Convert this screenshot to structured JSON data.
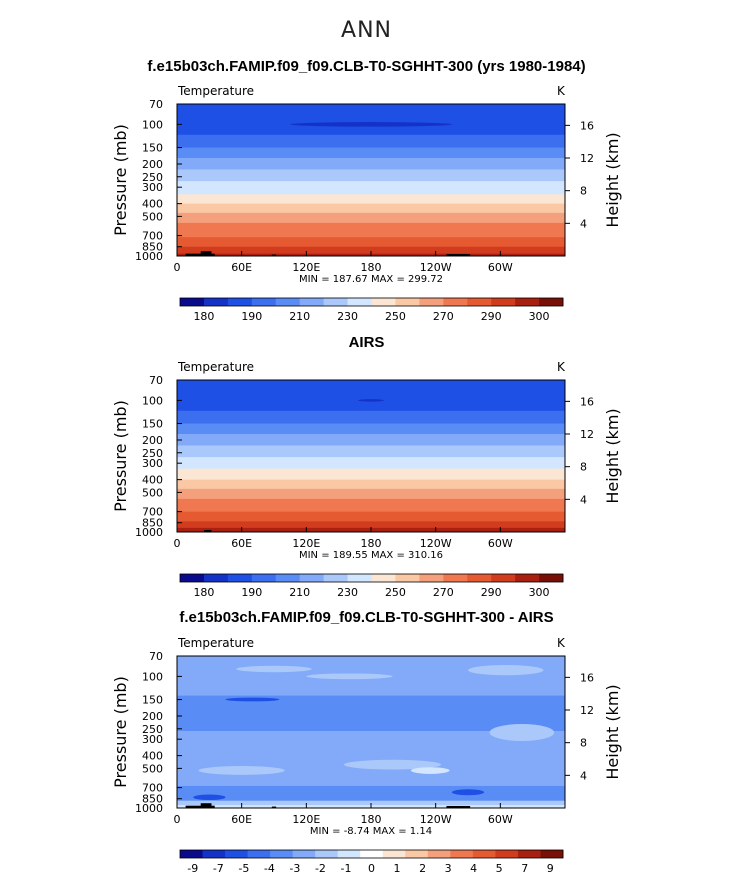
{
  "page": {
    "suptitle": "ANN",
    "panel_titles": [
      "f.e15b03ch.FAMIP.f09_f09.CLB-T0-SGHHT-300 (yrs 1980-1984)",
      "AIRS",
      "f.e15b03ch.FAMIP.f09_f09.CLB-T0-SGHHT-300 - AIRS"
    ]
  },
  "chart_data": [
    {
      "type": "heatmap",
      "title": "f.e15b03ch.FAMIP.f09_f09.CLB-T0-SGHHT-300 (yrs 1980-1984)",
      "variable": "Temperature",
      "units": "K",
      "ylabel": "Pressure (mb)",
      "ylabel_right": "Height (km)",
      "xticks": [
        "0",
        "60E",
        "120E",
        "180",
        "120W",
        "60W"
      ],
      "xtick_values": [
        0,
        60,
        120,
        180,
        240,
        300
      ],
      "xlim": [
        0,
        360
      ],
      "yticks": [
        "70",
        "100",
        "150",
        "200",
        "250",
        "300",
        "400",
        "500",
        "700",
        "850",
        "1000"
      ],
      "ytick_values": [
        70,
        100,
        150,
        200,
        250,
        300,
        400,
        500,
        700,
        850,
        1000
      ],
      "ylim": [
        70,
        1000
      ],
      "height_ticks": [
        "16",
        "12",
        "8",
        "4"
      ],
      "height_values": [
        16,
        12,
        8,
        4
      ],
      "stats": "MIN = 187.67  MAX = 299.72",
      "colorbar_labels": [
        "180",
        "190",
        "210",
        "230",
        "250",
        "270",
        "290",
        "300"
      ],
      "colorbar_colors": [
        "#0a0a8c",
        "#1432c8",
        "#1e50e6",
        "#3c6ef0",
        "#5a8cf5",
        "#82aaf8",
        "#aac8fa",
        "#d2e6ff",
        "#fae6d2",
        "#fac8a5",
        "#f5a07d",
        "#f07850",
        "#e65a32",
        "#d23c1e",
        "#aa2010",
        "#781008"
      ],
      "levels": [
        {
          "p": 70,
          "color": "#1e50e6"
        },
        {
          "p": 120,
          "color": "#3c6ef0"
        },
        {
          "p": 150,
          "color": "#5a8cf5"
        },
        {
          "p": 180,
          "color": "#82aaf8"
        },
        {
          "p": 220,
          "color": "#aac8fa"
        },
        {
          "p": 270,
          "color": "#d2e6ff"
        },
        {
          "p": 340,
          "color": "#fae6d2"
        },
        {
          "p": 400,
          "color": "#fac8a5"
        },
        {
          "p": 470,
          "color": "#f5a07d"
        },
        {
          "p": 560,
          "color": "#f07850"
        },
        {
          "p": 720,
          "color": "#e65a32"
        },
        {
          "p": 850,
          "color": "#d23c1e"
        },
        {
          "p": 960,
          "color": "#aa2010"
        }
      ],
      "features": [
        {
          "lon_center": 180,
          "lon_half": 75,
          "p": 100,
          "p_half": 4,
          "color": "#1432c8"
        }
      ],
      "topography": [
        {
          "lon": [
            8,
            35
          ],
          "p": 960
        },
        {
          "lon": [
            22,
            32
          ],
          "p": 920
        },
        {
          "lon": [
            88,
            92
          ],
          "p": 975
        },
        {
          "lon": [
            250,
            272
          ],
          "p": 965
        }
      ]
    },
    {
      "type": "heatmap",
      "title": "AIRS",
      "variable": "Temperature",
      "units": "K",
      "ylabel": "Pressure (mb)",
      "ylabel_right": "Height (km)",
      "xticks": [
        "0",
        "60E",
        "120E",
        "180",
        "120W",
        "60W"
      ],
      "xtick_values": [
        0,
        60,
        120,
        180,
        240,
        300
      ],
      "xlim": [
        0,
        360
      ],
      "yticks": [
        "70",
        "100",
        "150",
        "200",
        "250",
        "300",
        "400",
        "500",
        "700",
        "850",
        "1000"
      ],
      "ytick_values": [
        70,
        100,
        150,
        200,
        250,
        300,
        400,
        500,
        700,
        850,
        1000
      ],
      "ylim": [
        70,
        1000
      ],
      "height_ticks": [
        "16",
        "12",
        "8",
        "4"
      ],
      "height_values": [
        16,
        12,
        8,
        4
      ],
      "stats": "MIN = 189.55  MAX = 310.16",
      "colorbar_labels": [
        "180",
        "190",
        "210",
        "230",
        "250",
        "270",
        "290",
        "300"
      ],
      "colorbar_colors": [
        "#0a0a8c",
        "#1432c8",
        "#1e50e6",
        "#3c6ef0",
        "#5a8cf5",
        "#82aaf8",
        "#aac8fa",
        "#d2e6ff",
        "#fae6d2",
        "#fac8a5",
        "#f5a07d",
        "#f07850",
        "#e65a32",
        "#d23c1e",
        "#aa2010",
        "#781008"
      ],
      "levels": [
        {
          "p": 70,
          "color": "#1e50e6"
        },
        {
          "p": 120,
          "color": "#3c6ef0"
        },
        {
          "p": 150,
          "color": "#5a8cf5"
        },
        {
          "p": 180,
          "color": "#82aaf8"
        },
        {
          "p": 220,
          "color": "#aac8fa"
        },
        {
          "p": 270,
          "color": "#d2e6ff"
        },
        {
          "p": 330,
          "color": "#fae6d2"
        },
        {
          "p": 400,
          "color": "#fac8a5"
        },
        {
          "p": 470,
          "color": "#f5a07d"
        },
        {
          "p": 560,
          "color": "#f07850"
        },
        {
          "p": 700,
          "color": "#e65a32"
        },
        {
          "p": 830,
          "color": "#d23c1e"
        },
        {
          "p": 930,
          "color": "#aa2010"
        }
      ],
      "features": [
        {
          "lon_center": 180,
          "lon_half": 12,
          "p": 100,
          "p_half": 1.5,
          "color": "#1432c8"
        }
      ],
      "topography": [
        {
          "lon": [
            25,
            32
          ],
          "p": 965
        }
      ]
    },
    {
      "type": "heatmap",
      "title": "f.e15b03ch.FAMIP.f09_f09.CLB-T0-SGHHT-300 - AIRS",
      "variable": "Temperature",
      "units": "K",
      "ylabel": "Pressure (mb)",
      "ylabel_right": "Height (km)",
      "xticks": [
        "0",
        "60E",
        "120E",
        "180",
        "120W",
        "60W"
      ],
      "xtick_values": [
        0,
        60,
        120,
        180,
        240,
        300
      ],
      "xlim": [
        0,
        360
      ],
      "yticks": [
        "70",
        "100",
        "150",
        "200",
        "250",
        "300",
        "400",
        "500",
        "700",
        "850",
        "1000"
      ],
      "ytick_values": [
        70,
        100,
        150,
        200,
        250,
        300,
        400,
        500,
        700,
        850,
        1000
      ],
      "ylim": [
        70,
        1000
      ],
      "height_ticks": [
        "16",
        "12",
        "8",
        "4"
      ],
      "height_values": [
        16,
        12,
        8,
        4
      ],
      "stats": "MIN =  -8.74  MAX =   1.14",
      "colorbar_labels": [
        "-9",
        "-7",
        "-5",
        "-4",
        "-3",
        "-2",
        "-1",
        "0",
        "1",
        "2",
        "3",
        "4",
        "5",
        "7",
        "9"
      ],
      "colorbar_colors": [
        "#0a0a8c",
        "#1432c8",
        "#1e50e6",
        "#3c6ef0",
        "#5a8cf5",
        "#82aaf8",
        "#aac8fa",
        "#d2e6ff",
        "#ffffff",
        "#fae6d2",
        "#fac8a5",
        "#f5a07d",
        "#f07850",
        "#e65a32",
        "#d23c1e",
        "#aa2010",
        "#781008"
      ],
      "levels": [
        {
          "p": 70,
          "color": "#82aaf8"
        },
        {
          "p": 140,
          "color": "#5a8cf5"
        },
        {
          "p": 260,
          "color": "#82aaf8"
        },
        {
          "p": 680,
          "color": "#5a8cf5"
        },
        {
          "p": 880,
          "color": "#aac8fa"
        },
        {
          "p": 950,
          "color": "#d2e6ff"
        }
      ],
      "features": [
        {
          "lon_center": 90,
          "lon_half": 35,
          "p": 88,
          "p_half": 5,
          "color": "#aac8fa"
        },
        {
          "lon_center": 305,
          "lon_half": 35,
          "p": 90,
          "p_half": 8,
          "color": "#aac8fa"
        },
        {
          "lon_center": 160,
          "lon_half": 40,
          "p": 100,
          "p_half": 5,
          "color": "#aac8fa"
        },
        {
          "lon_center": 70,
          "lon_half": 25,
          "p": 150,
          "p_half": 5,
          "color": "#1e50e6"
        },
        {
          "lon_center": 60,
          "lon_half": 40,
          "p": 520,
          "p_half": 40,
          "color": "#aac8fa"
        },
        {
          "lon_center": 200,
          "lon_half": 45,
          "p": 470,
          "p_half": 40,
          "color": "#aac8fa"
        },
        {
          "lon_center": 235,
          "lon_half": 18,
          "p": 520,
          "p_half": 30,
          "color": "#d2e6ff"
        },
        {
          "lon_center": 320,
          "lon_half": 30,
          "p": 270,
          "p_half": 40,
          "color": "#aac8fa"
        },
        {
          "lon_center": 30,
          "lon_half": 15,
          "p": 830,
          "p_half": 40,
          "color": "#1e50e6"
        },
        {
          "lon_center": 270,
          "lon_half": 15,
          "p": 760,
          "p_half": 40,
          "color": "#1e50e6"
        }
      ],
      "topography": [
        {
          "lon": [
            8,
            35
          ],
          "p": 960
        },
        {
          "lon": [
            22,
            32
          ],
          "p": 920
        },
        {
          "lon": [
            88,
            92
          ],
          "p": 975
        },
        {
          "lon": [
            250,
            272
          ],
          "p": 965
        }
      ]
    }
  ]
}
